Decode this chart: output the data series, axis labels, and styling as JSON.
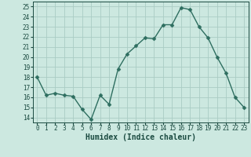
{
  "x": [
    0,
    1,
    2,
    3,
    4,
    5,
    6,
    7,
    8,
    9,
    10,
    11,
    12,
    13,
    14,
    15,
    16,
    17,
    18,
    19,
    20,
    21,
    22,
    23
  ],
  "y": [
    18,
    16.2,
    16.4,
    16.2,
    16.1,
    14.8,
    13.8,
    16.2,
    15.3,
    18.8,
    20.3,
    21.1,
    21.9,
    21.8,
    23.2,
    23.2,
    24.9,
    24.7,
    23.0,
    21.9,
    20.0,
    18.4,
    16.0,
    15.0
  ],
  "line_color": "#2e6e60",
  "marker": "D",
  "marker_size": 2.5,
  "linewidth": 1.0,
  "bg_color": "#cce8e0",
  "grid_color": "#aaccc4",
  "xlabel": "Humidex (Indice chaleur)",
  "ylabel": "",
  "xlim": [
    -0.5,
    23.5
  ],
  "ylim": [
    13.5,
    25.5
  ],
  "yticks": [
    14,
    15,
    16,
    17,
    18,
    19,
    20,
    21,
    22,
    23,
    24,
    25
  ],
  "xticks": [
    0,
    1,
    2,
    3,
    4,
    5,
    6,
    7,
    8,
    9,
    10,
    11,
    12,
    13,
    14,
    15,
    16,
    17,
    18,
    19,
    20,
    21,
    22,
    23
  ],
  "tick_color": "#1a4a40",
  "xlabel_fontsize": 7.0,
  "tick_fontsize": 5.5
}
